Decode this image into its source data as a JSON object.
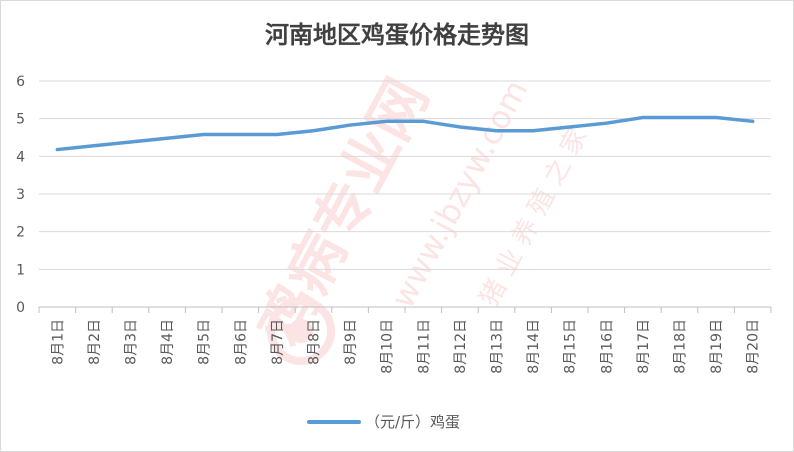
{
  "chart_data": {
    "type": "line",
    "title": "河南地区鸡蛋价格走势图",
    "categories": [
      "8月1日",
      "8月2日",
      "8月3日",
      "8月4日",
      "8月5日",
      "8月6日",
      "8月7日",
      "8月8日",
      "8月9日",
      "8月10日",
      "8月11日",
      "8月12日",
      "8月13日",
      "8月14日",
      "8月15日",
      "8月16日",
      "8月17日",
      "8月18日",
      "8月19日",
      "8月20日"
    ],
    "series": [
      {
        "name": "（元/斤）鸡蛋",
        "color": "#5b9bd5",
        "values": [
          4.18,
          4.28,
          4.38,
          4.48,
          4.58,
          4.58,
          4.58,
          4.68,
          4.83,
          4.93,
          4.93,
          4.78,
          4.68,
          4.68,
          4.78,
          4.88,
          5.03,
          5.03,
          5.03,
          4.93
        ]
      }
    ],
    "ylim": [
      0,
      6
    ],
    "yticks": [
      0,
      1,
      2,
      3,
      4,
      5,
      6
    ],
    "grid": true,
    "legend_position": "bottom",
    "xlabel": "",
    "ylabel": ""
  },
  "watermark": {
    "text_red": "鸡病专业网",
    "text_url": "www.jbzyw.com",
    "text_faint": "猪 业 养 殖 之 家",
    "color": "#e5392e"
  },
  "colors": {
    "line": "#5b9bd5",
    "grid": "#d9d9d9",
    "axis": "#bfbfbf"
  }
}
